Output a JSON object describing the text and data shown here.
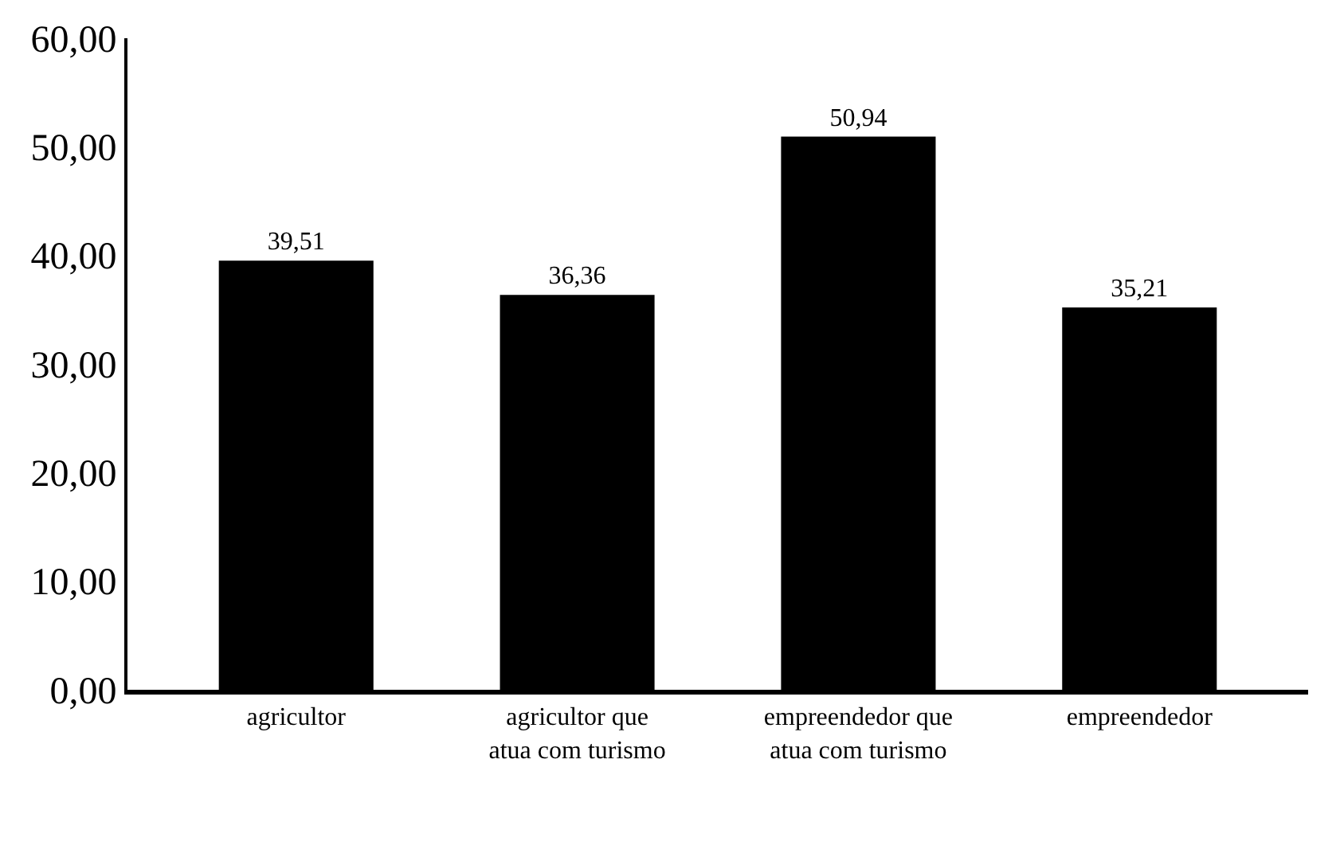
{
  "chart_data": {
    "type": "bar",
    "categories": [
      "agricultor",
      "agricultor que atua com turismo",
      "empreendedor que atua com turismo",
      "empreendedor"
    ],
    "values": [
      39.51,
      36.36,
      50.94,
      35.21
    ],
    "value_labels": [
      "39,51",
      "36,36",
      "50,94",
      "35,21"
    ],
    "color": "#000000",
    "ylim": [
      0,
      60
    ],
    "yticks": [
      {
        "value": 0,
        "label": "0,00"
      },
      {
        "value": 10,
        "label": "10,00"
      },
      {
        "value": 20,
        "label": "20,00"
      },
      {
        "value": 30,
        "label": "30,00"
      },
      {
        "value": 40,
        "label": "40,00"
      },
      {
        "value": 50,
        "label": "50,00"
      },
      {
        "value": 60,
        "label": "60,00"
      }
    ],
    "legend": false
  }
}
